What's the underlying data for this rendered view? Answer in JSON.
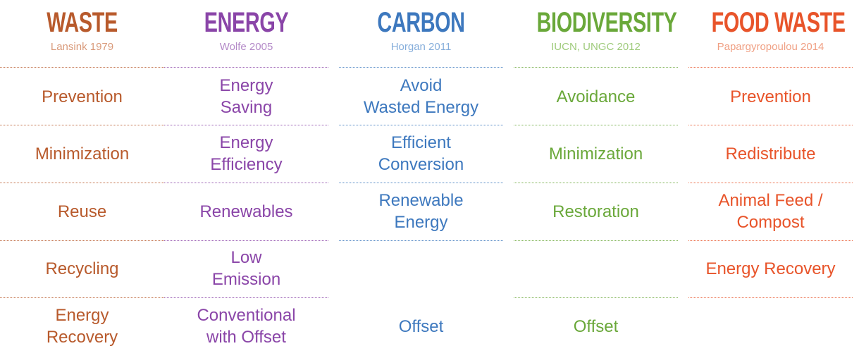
{
  "columns": [
    {
      "title": "WASTE",
      "source": "Lansink 1979",
      "color": "#b85a2c",
      "source_color": "#d99a7a",
      "rows": [
        "Prevention",
        "Minimization",
        "Reuse",
        "Recycling",
        "Energy\nRecovery"
      ]
    },
    {
      "title": "ENERGY",
      "source": "Wolfe 2005",
      "color": "#8a45a8",
      "source_color": "#b48ac8",
      "rows": [
        "Energy\nSaving",
        "Energy\nEfficiency",
        "Renewables",
        "Low\nEmission",
        "Conventional\nwith Offset"
      ]
    },
    {
      "title": "CARBON",
      "source": "Horgan 2011",
      "color": "#3d78be",
      "source_color": "#86aedb",
      "rows": [
        "Avoid\nWasted Energy",
        "Efficient\nConversion",
        "Renewable\nEnergy",
        "",
        "Offset"
      ]
    },
    {
      "title": "BIODIVERSITY",
      "source": "IUCN, UNGC 2012",
      "color": "#6aa83a",
      "source_color": "#9fcb7c",
      "rows": [
        "Avoidance",
        "Minimization",
        "Restoration",
        "",
        "Offset"
      ]
    },
    {
      "title": "FOOD WASTE",
      "source": "Papargyropoulou 2014",
      "color": "#e8542a",
      "source_color": "#f0a084",
      "rows": [
        "Prevention",
        "Redistribute",
        "Animal Feed /\nCompost",
        "Energy Recovery",
        ""
      ]
    }
  ]
}
